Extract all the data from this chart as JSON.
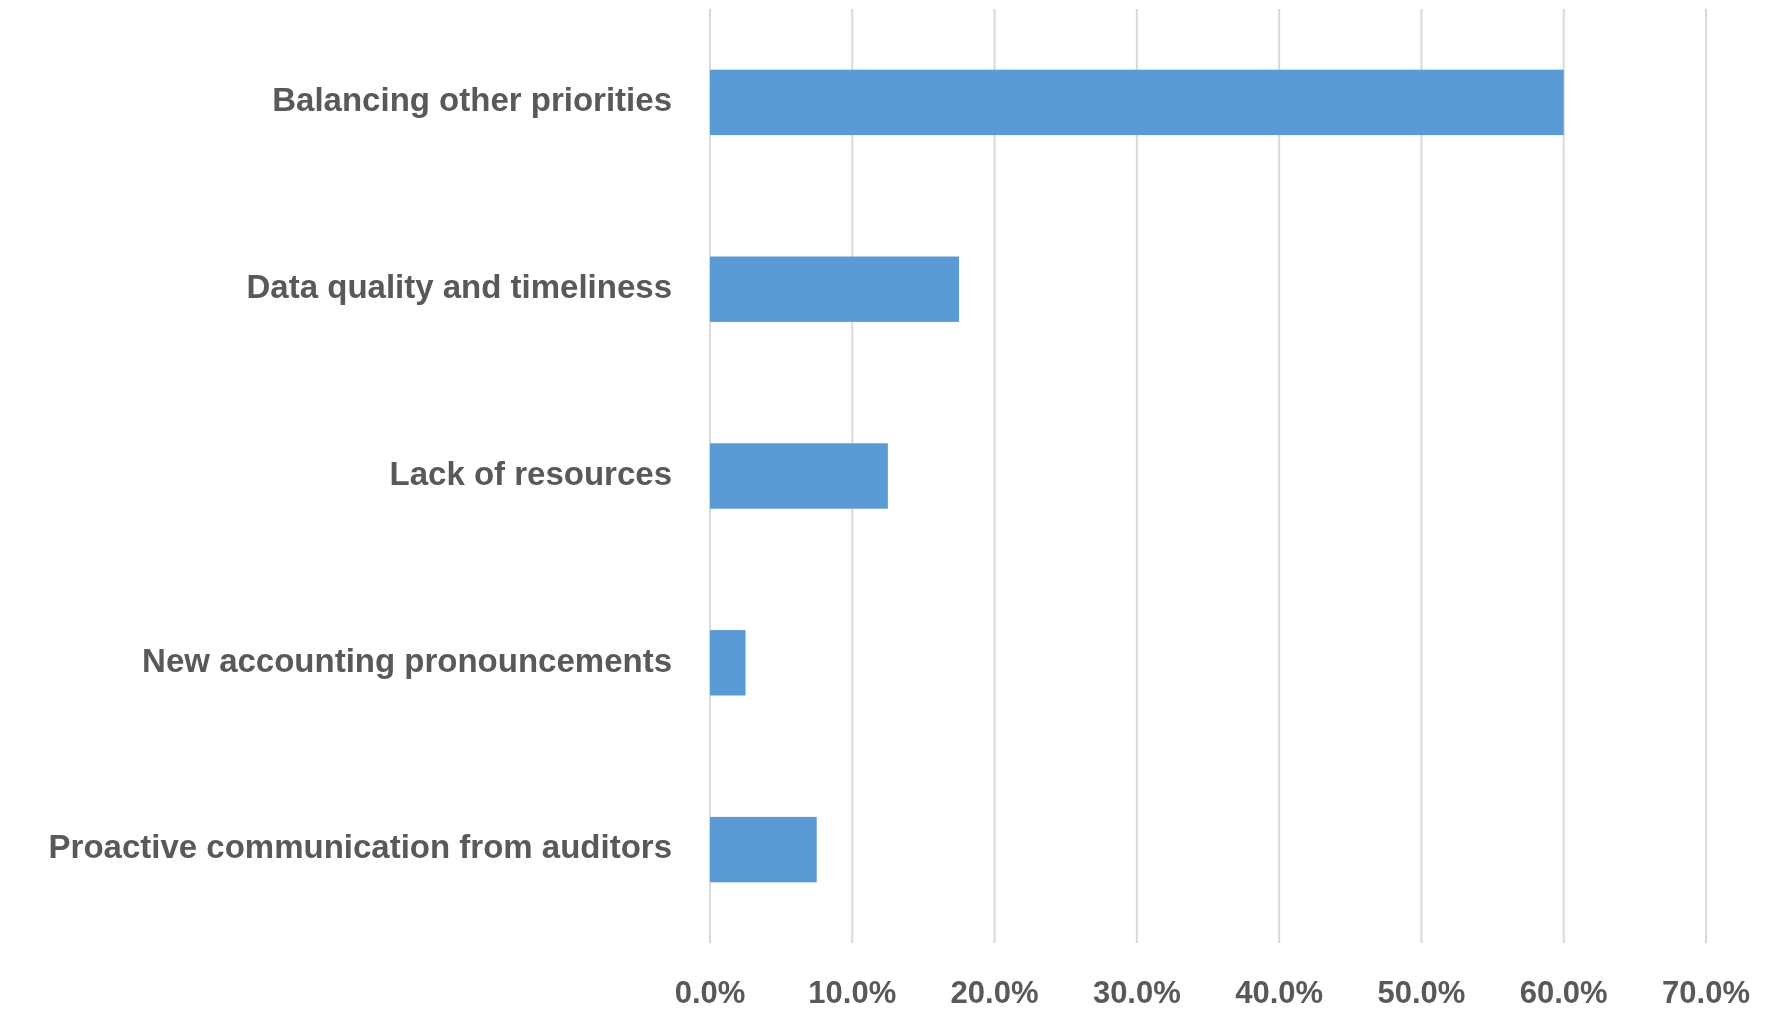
{
  "chart_data": {
    "type": "bar",
    "orientation": "horizontal",
    "categories": [
      "Balancing other priorities",
      "Data quality and timeliness",
      "Lack of resources",
      "New accounting pronouncements",
      "Proactive communication from auditors"
    ],
    "values": [
      60,
      17.5,
      12.5,
      2.5,
      7.5
    ],
    "color": "#5b9bd5",
    "xlim": [
      0,
      70
    ],
    "xticks": [
      {
        "value": 0,
        "label": "0.0%"
      },
      {
        "value": 10,
        "label": "10.0%"
      },
      {
        "value": 20,
        "label": "20.0%"
      },
      {
        "value": 30,
        "label": "30.0%"
      },
      {
        "value": 40,
        "label": "40.0%"
      },
      {
        "value": 50,
        "label": "50.0%"
      },
      {
        "value": 60,
        "label": "60.0%"
      },
      {
        "value": 70,
        "label": "70.0%"
      }
    ],
    "grid": "x"
  }
}
